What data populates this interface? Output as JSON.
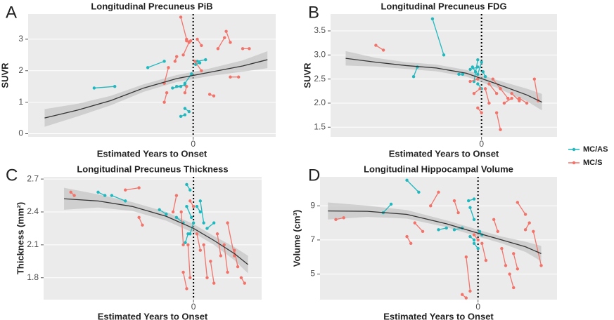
{
  "chart_data": [
    {
      "type": "scatter",
      "label": "A",
      "title": "Longitudinal Precuneus PiB",
      "x_label": "Estimated Years to Onset",
      "y_label": "SUVR",
      "xlim": [
        -20,
        10
      ],
      "xticks": [
        0
      ],
      "ylim": [
        -0.1,
        3.8
      ],
      "yticks": [
        0,
        1,
        2,
        3
      ],
      "series": [
        {
          "name": "MC/AS",
          "color": "#1fb8bf",
          "x": [
            -12,
            -9.5,
            null,
            -5.5,
            -3.5,
            null,
            -2.5,
            -1.5,
            null,
            -2,
            -1,
            null,
            -1.5,
            -1,
            null,
            -1,
            -0.5,
            null,
            0.5,
            1.5,
            null,
            -1,
            -0.2,
            null,
            0.3,
            0.8
          ],
          "values": [
            1.45,
            1.5,
            null,
            2.1,
            2.3,
            null,
            1.45,
            1.5,
            null,
            1.5,
            1.55,
            null,
            0.55,
            0.6,
            null,
            0.8,
            0.7,
            null,
            2.3,
            2.35,
            null,
            1.6,
            1.9,
            null,
            2.2,
            2.25
          ]
        },
        {
          "name": "MC/S",
          "color": "#f2736a",
          "x": [
            -3.5,
            -3,
            null,
            -2.2,
            -2,
            null,
            -1.5,
            -0.8,
            null,
            -1.2,
            -0.5,
            null,
            -0.8,
            -0.3,
            null,
            0.2,
            1,
            null,
            0.5,
            1,
            null,
            2,
            2.5,
            null,
            3,
            3.8,
            null,
            4,
            4.5,
            null,
            4.5,
            5.5,
            null,
            6,
            6.8,
            null,
            -1,
            -0.8,
            null,
            -3.5,
            -3.2
          ],
          "values": [
            1.6,
            2.1,
            null,
            2.3,
            2.45,
            null,
            3.7,
            3.0,
            null,
            2.5,
            2.9,
            null,
            2.95,
            2.95,
            null,
            2.3,
            2.0,
            null,
            3.0,
            2.8,
            null,
            1.25,
            1.2,
            null,
            2.7,
            3.05,
            null,
            3.25,
            2.9,
            null,
            1.8,
            1.8,
            null,
            2.7,
            2.7,
            null,
            1.3,
            1.5,
            null,
            1.0,
            1.3
          ]
        }
      ],
      "fit": {
        "x": [
          -18,
          -14,
          -10,
          -6,
          -2,
          2,
          6,
          9
        ],
        "values": [
          0.5,
          0.75,
          1.05,
          1.45,
          1.75,
          1.95,
          2.15,
          2.35
        ],
        "lower": [
          0.22,
          0.55,
          0.9,
          1.33,
          1.64,
          1.83,
          1.97,
          2.08
        ],
        "upper": [
          0.78,
          0.95,
          1.2,
          1.57,
          1.86,
          2.07,
          2.33,
          2.62
        ]
      }
    },
    {
      "type": "scatter",
      "label": "B",
      "title": "Longitudinal Precuneus FDG",
      "x_label": "Estimated Years to Onset",
      "y_label": "SUVR",
      "xlim": [
        -20,
        10
      ],
      "xticks": [
        0
      ],
      "ylim": [
        1.3,
        3.85
      ],
      "yticks": [
        1.5,
        {
          "value": 2,
          "label": "2.0"
        },
        2.5,
        {
          "value": 3,
          "label": "3.0"
        },
        3.5
      ],
      "series": [
        {
          "name": "MC/AS",
          "color": "#1fb8bf",
          "x": [
            -9,
            -8.5,
            null,
            -6.5,
            -5,
            null,
            -1.5,
            -0.5,
            null,
            -1,
            -0.5,
            null,
            -0.5,
            0,
            null,
            -1.2,
            -0.8,
            null,
            0.2,
            0.5,
            null,
            -0.5,
            0,
            null,
            -3,
            -2.5
          ],
          "values": [
            2.55,
            2.75,
            null,
            3.75,
            3.0,
            null,
            2.7,
            2.75,
            null,
            2.45,
            2.9,
            null,
            2.6,
            2.85,
            null,
            2.75,
            2.65,
            null,
            2.65,
            2.55,
            null,
            2.4,
            2.3,
            null,
            2.6,
            2.6
          ]
        },
        {
          "name": "MC/S",
          "color": "#f2736a",
          "x": [
            -14,
            -13,
            null,
            -1.5,
            -0.5,
            null,
            -0.5,
            0,
            null,
            0.5,
            1,
            null,
            1,
            2,
            null,
            2,
            2.5,
            null,
            2.5,
            3.5,
            null,
            3,
            4,
            null,
            4,
            5,
            null,
            5,
            6,
            null,
            7,
            7.5,
            null,
            1.5,
            2.5,
            null,
            -1,
            -0.2
          ],
          "values": [
            3.2,
            3.1,
            null,
            2.45,
            2.5,
            null,
            1.9,
            1.8,
            null,
            2.3,
            2.0,
            null,
            2.4,
            2.2,
            null,
            1.8,
            1.45,
            null,
            2.3,
            2.1,
            null,
            2.0,
            2.1,
            null,
            2.2,
            2.05,
            null,
            2.1,
            2.0,
            null,
            2.5,
            2.05,
            null,
            2.5,
            2.3,
            null,
            2.2,
            2.3
          ]
        }
      ],
      "fit": {
        "x": [
          -18,
          -14,
          -10,
          -6,
          -2,
          2,
          6,
          8
        ],
        "values": [
          2.93,
          2.85,
          2.78,
          2.73,
          2.62,
          2.4,
          2.17,
          2.02
        ],
        "lower": [
          2.78,
          2.76,
          2.71,
          2.66,
          2.55,
          2.32,
          2.04,
          1.85
        ],
        "upper": [
          3.08,
          2.94,
          2.85,
          2.8,
          2.69,
          2.48,
          2.3,
          2.19
        ]
      }
    },
    {
      "type": "scatter",
      "label": "C",
      "title": "Longitudinal Precuneus Thickness",
      "x_label": "Estimated Years to Onset",
      "y_label": "Thickness (mm²)",
      "xlim": [
        -22,
        10
      ],
      "xticks": [
        0
      ],
      "ylim": [
        1.6,
        2.72
      ],
      "yticks": [
        1.8,
        2.1,
        2.4,
        2.7
      ],
      "series": [
        {
          "name": "MC/AS",
          "color": "#1fb8bf",
          "x": [
            -14,
            -13,
            null,
            -12,
            -10,
            null,
            -5,
            -4,
            null,
            -2.5,
            -1.5,
            null,
            -1,
            -0.5,
            null,
            -1,
            -0.3,
            null,
            -0.5,
            0,
            null,
            1,
            1.5,
            null,
            2,
            3,
            null,
            -1.2,
            -0.8,
            null,
            0.5,
            1
          ],
          "values": [
            2.58,
            2.55,
            null,
            2.55,
            2.5,
            null,
            2.42,
            2.38,
            null,
            2.35,
            2.3,
            null,
            2.65,
            2.6,
            null,
            2.45,
            2.35,
            null,
            2.2,
            2.3,
            null,
            2.5,
            2.3,
            null,
            2.25,
            2.3,
            null,
            2.12,
            2.2,
            null,
            2.45,
            2.4
          ]
        },
        {
          "name": "MC/S",
          "color": "#f2736a",
          "x": [
            -18,
            -17.5,
            null,
            -10,
            -8,
            null,
            -8,
            -7.5,
            null,
            -3,
            -2.5,
            null,
            -1.8,
            -1.5,
            null,
            -1.5,
            -1,
            null,
            -0.8,
            -0.5,
            null,
            0.5,
            1,
            null,
            1.5,
            2,
            null,
            2.5,
            3,
            null,
            3.5,
            4,
            null,
            4.5,
            5,
            null,
            5,
            6,
            null,
            6,
            6.5,
            null,
            7,
            7.5,
            null,
            -0.5,
            0
          ],
          "values": [
            2.58,
            2.55,
            null,
            2.6,
            2.62,
            null,
            2.35,
            2.28,
            null,
            2.4,
            2.55,
            null,
            2.4,
            2.1,
            null,
            1.85,
            1.7,
            null,
            2.1,
            1.8,
            null,
            2.2,
            2.05,
            null,
            2.1,
            1.8,
            null,
            1.95,
            1.75,
            null,
            2.2,
            2.0,
            null,
            2.1,
            1.85,
            null,
            2.3,
            2.0,
            null,
            2.05,
            1.9,
            null,
            1.8,
            1.75,
            null,
            2.5,
            2.45
          ]
        }
      ],
      "fit": {
        "x": [
          -19,
          -14,
          -9,
          -4,
          0,
          3,
          6,
          8
        ],
        "values": [
          2.52,
          2.5,
          2.45,
          2.36,
          2.25,
          2.14,
          2.02,
          1.92
        ],
        "lower": [
          2.42,
          2.44,
          2.41,
          2.32,
          2.21,
          2.1,
          1.96,
          1.84
        ],
        "upper": [
          2.62,
          2.56,
          2.49,
          2.4,
          2.29,
          2.18,
          2.08,
          2.0
        ]
      }
    },
    {
      "type": "scatter",
      "label": "D",
      "title": "Longitudinal Hippocampal Volume",
      "x_label": "Estimated Years to Onset",
      "y_label": "Volume (cm³)",
      "xlim": [
        -20,
        10
      ],
      "xticks": [
        0
      ],
      "ylim": [
        3.5,
        10.7
      ],
      "yticks": [
        5,
        7,
        9
      ],
      "series": [
        {
          "name": "MC/AS",
          "color": "#1fb8bf",
          "x": [
            -12,
            -11,
            null,
            -9,
            -7.5,
            null,
            -5,
            -4,
            null,
            -3,
            -2,
            null,
            -1.2,
            -0.5,
            null,
            -1,
            -0.5,
            null,
            -1,
            -0.5,
            null,
            -0.5,
            0,
            null,
            0.2,
            0.5
          ],
          "values": [
            8.6,
            9.1,
            null,
            10.5,
            9.8,
            null,
            7.6,
            7.7,
            null,
            7.6,
            7.7,
            null,
            9.3,
            9.4,
            null,
            8.9,
            8.2,
            null,
            7.2,
            7.0,
            null,
            6.8,
            6.5,
            null,
            7.5,
            7.3
          ]
        },
        {
          "name": "MC/S",
          "color": "#f2736a",
          "x": [
            -18,
            -17,
            null,
            -8,
            -7,
            null,
            -9,
            -8.5,
            null,
            -6,
            -5,
            null,
            -3,
            -2.5,
            null,
            -2,
            -1.5,
            null,
            -1.5,
            -1,
            null,
            -0.5,
            0,
            null,
            0.5,
            1,
            null,
            2,
            2.5,
            null,
            3,
            3.5,
            null,
            4,
            4.5,
            null,
            5,
            6,
            null,
            6,
            6.5,
            null,
            7,
            8,
            null,
            4.5,
            5
          ],
          "values": [
            8.2,
            8.3,
            null,
            8.0,
            7.5,
            null,
            7.2,
            6.8,
            null,
            9.0,
            9.8,
            null,
            9.3,
            8.6,
            null,
            3.8,
            3.6,
            null,
            6.0,
            4.0,
            null,
            7.3,
            7.0,
            null,
            6.8,
            5.8,
            null,
            8.2,
            7.5,
            null,
            6.5,
            5.5,
            null,
            5.0,
            4.2,
            null,
            9.2,
            8.5,
            null,
            7.6,
            8.0,
            null,
            7.5,
            5.5,
            null,
            6.2,
            5.3
          ]
        }
      ],
      "fit": {
        "x": [
          -19,
          -14,
          -9,
          -4,
          0,
          3,
          6,
          8
        ],
        "values": [
          8.7,
          8.68,
          8.5,
          7.95,
          7.4,
          7.0,
          6.6,
          6.2
        ],
        "lower": [
          8.2,
          8.35,
          8.25,
          7.75,
          7.2,
          6.8,
          6.3,
          5.75
        ],
        "upper": [
          9.2,
          9.01,
          8.75,
          8.15,
          7.6,
          7.2,
          6.9,
          6.65
        ]
      }
    }
  ]
}
